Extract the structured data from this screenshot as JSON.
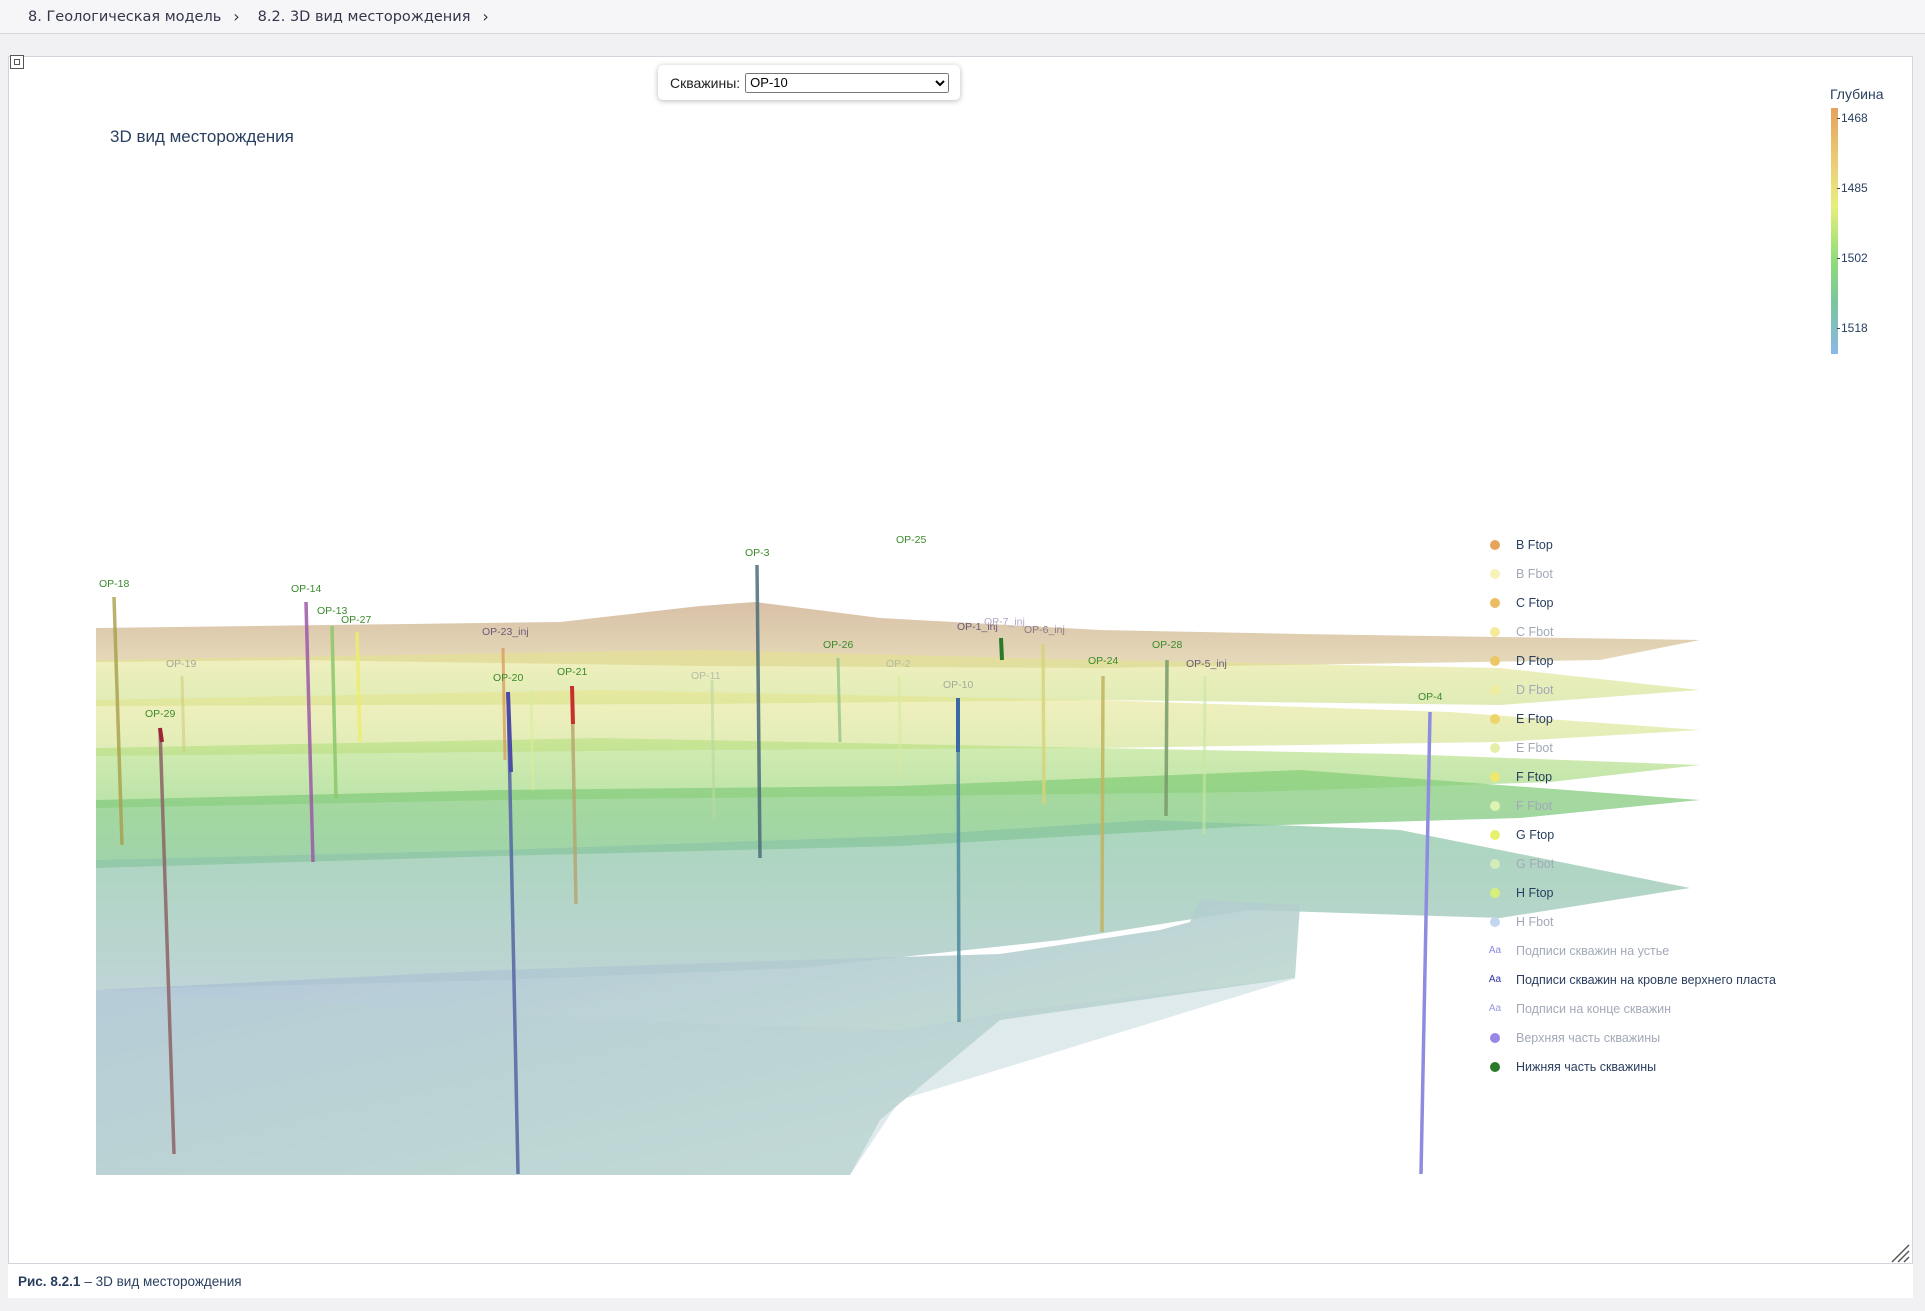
{
  "breadcrumb": {
    "items": [
      "8. Геологическая модель",
      "8.2. 3D вид месторождения"
    ],
    "separator": "›"
  },
  "selector": {
    "label": "Скважины:",
    "value": "OP-10"
  },
  "plot": {
    "title": "3D вид месторождения"
  },
  "colorbar": {
    "title": "Глубина",
    "ticks": [
      "1468",
      "1485",
      "1502",
      "1518"
    ],
    "colors": [
      "#e6a35c",
      "#ecd27a",
      "#e6ef7a",
      "#8fdc7a",
      "#7cc4a0",
      "#8ab8e8"
    ]
  },
  "wells": [
    "OP-18",
    "OP-19",
    "OP-29",
    "OP-14",
    "OP-13",
    "OP-27",
    "OP-23_inj",
    "OP-20",
    "OP-21",
    "OP-11",
    "OP-3",
    "OP-25",
    "OP-26",
    "OP-2",
    "OP-10",
    "OP-1_inj",
    "OP-7_inj",
    "OP-6_inj",
    "OP-24",
    "OP-28",
    "OP-5_inj",
    "OP-4"
  ],
  "legend": {
    "items": [
      {
        "label": "B Ftop",
        "swatch": "dot",
        "color": "#e6a35c",
        "active": true
      },
      {
        "label": "B Fbot",
        "swatch": "dot",
        "color": "#f7f3b8",
        "active": false
      },
      {
        "label": "C Ftop",
        "swatch": "dot",
        "color": "#ebbd62",
        "active": true
      },
      {
        "label": "C Fbot",
        "swatch": "dot",
        "color": "#f3eb9a",
        "active": false
      },
      {
        "label": "D Ftop",
        "swatch": "dot",
        "color": "#ecc764",
        "active": true
      },
      {
        "label": "D Fbot",
        "swatch": "dot",
        "color": "#eeeda0",
        "active": false
      },
      {
        "label": "E Ftop",
        "swatch": "dot",
        "color": "#eed569",
        "active": true
      },
      {
        "label": "E Fbot",
        "swatch": "dot",
        "color": "#e6efa8",
        "active": false
      },
      {
        "label": "F Ftop",
        "swatch": "dot",
        "color": "#f0e86c",
        "active": true
      },
      {
        "label": "F Fbot",
        "swatch": "dot",
        "color": "#dff3b2",
        "active": false
      },
      {
        "label": "G Ftop",
        "swatch": "dot",
        "color": "#e8f070",
        "active": true
      },
      {
        "label": "G Fbot",
        "swatch": "dot",
        "color": "#d4ecba",
        "active": false
      },
      {
        "label": "H Ftop",
        "swatch": "dot",
        "color": "#d8f07a",
        "active": true
      },
      {
        "label": "H Fbot",
        "swatch": "dot",
        "color": "#c2d6f2",
        "active": false
      },
      {
        "label": "Подписи скважин на устье",
        "swatch": "text",
        "color": "#8a8ae6",
        "active": false
      },
      {
        "label": "Подписи скважин на кровле верхнего пласта",
        "swatch": "text",
        "color": "#3535a6",
        "active": true
      },
      {
        "label": "Подписи на конце скважин",
        "swatch": "text",
        "color": "#9a9ae0",
        "active": false
      },
      {
        "label": "Верхняя часть скважины",
        "swatch": "dot",
        "color": "#9a86e6",
        "active": false
      },
      {
        "label": "Нижняя часть скважины",
        "swatch": "dot",
        "color": "#2a7a2a",
        "active": true
      }
    ]
  },
  "caption": {
    "number": "Рис. 8.2.1",
    "text": "– 3D вид месторождения"
  }
}
